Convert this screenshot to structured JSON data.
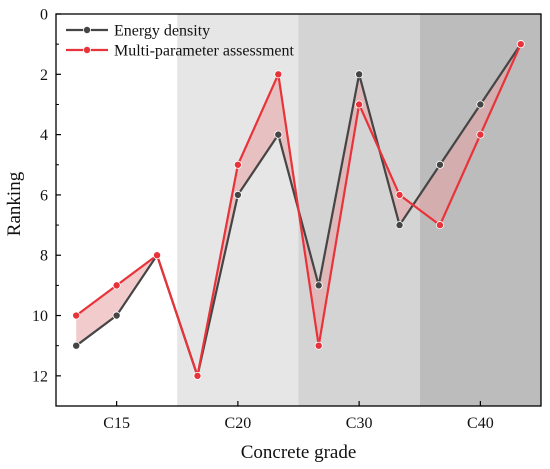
{
  "chart_data": {
    "type": "line",
    "title": "",
    "xlabel": "Concrete grade",
    "ylabel": "Ranking",
    "ylim": [
      0,
      13
    ],
    "y_inverted": true,
    "yticks": [
      "0",
      "2",
      "4",
      "6",
      "8",
      "10",
      "12"
    ],
    "categories": [
      "C15",
      "C20",
      "C30",
      "C40"
    ],
    "group_size": 3,
    "x": [
      1,
      2,
      3,
      4,
      5,
      6,
      7,
      8,
      9,
      10,
      11,
      12
    ],
    "grid": false,
    "legend_position": "top-left",
    "series": [
      {
        "name": "Energy density",
        "color": "#454545",
        "values": [
          11,
          10,
          8,
          12,
          6,
          4,
          9,
          2,
          7,
          5,
          3,
          1
        ]
      },
      {
        "name": "Multi-parameter assessment",
        "color": "#e8333a",
        "values": [
          10,
          9,
          8,
          12,
          5,
          2,
          11,
          3,
          6,
          7,
          4,
          1
        ]
      }
    ],
    "fill_between_color": "#e8a0a3",
    "background_bands": [
      "#ffffff",
      "#e6e6e6",
      "#d4d4d4",
      "#bcbcbc"
    ]
  }
}
